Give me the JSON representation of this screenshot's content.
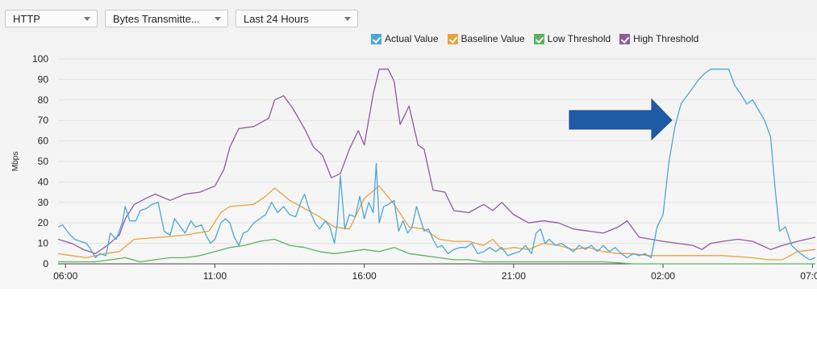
{
  "toolbar": {
    "protocol": "HTTP",
    "metric": "Bytes Transmitte...",
    "range": "Last 24 Hours"
  },
  "legend": [
    {
      "label": "Actual Value",
      "color": "#4aa7d6"
    },
    {
      "label": "Baseline Value",
      "color": "#e8a23c"
    },
    {
      "label": "Low Threshold",
      "color": "#5bb35f"
    },
    {
      "label": "High Threshold",
      "color": "#8e5aa0"
    }
  ],
  "annotation_icon": "arrow-right-icon",
  "chart_data": {
    "type": "line",
    "ylabel": "Mbps",
    "xlabel": "",
    "ylim": [
      0,
      100
    ],
    "yticks": [
      0,
      10,
      20,
      30,
      40,
      50,
      60,
      70,
      80,
      90,
      100
    ],
    "xlim": [
      5.75,
      31.1
    ],
    "xticks": [
      {
        "label": "06:00",
        "x": 6
      },
      {
        "label": "11:00",
        "x": 11
      },
      {
        "label": "16:00",
        "x": 16
      },
      {
        "label": "21:00",
        "x": 21
      },
      {
        "label": "02:00",
        "x": 26
      },
      {
        "label": "07:00",
        "x": 31
      }
    ],
    "grid": true,
    "legend_position": "top-right",
    "series": [
      {
        "name": "Actual Value",
        "color": "#4aa7d6",
        "points": [
          [
            5.75,
            18
          ],
          [
            5.9,
            19
          ],
          [
            6.1,
            15
          ],
          [
            6.3,
            12
          ],
          [
            6.5,
            11
          ],
          [
            6.7,
            10
          ],
          [
            6.85,
            7
          ],
          [
            7.0,
            3
          ],
          [
            7.15,
            5
          ],
          [
            7.35,
            4
          ],
          [
            7.5,
            15
          ],
          [
            7.7,
            12
          ],
          [
            7.9,
            20
          ],
          [
            8.0,
            28
          ],
          [
            8.15,
            21
          ],
          [
            8.35,
            21
          ],
          [
            8.5,
            26
          ],
          [
            8.7,
            27
          ],
          [
            8.9,
            29
          ],
          [
            9.1,
            30
          ],
          [
            9.3,
            16
          ],
          [
            9.5,
            14
          ],
          [
            9.65,
            22
          ],
          [
            9.85,
            18
          ],
          [
            10.0,
            15
          ],
          [
            10.2,
            21
          ],
          [
            10.35,
            18
          ],
          [
            10.55,
            19
          ],
          [
            10.7,
            14
          ],
          [
            10.85,
            10
          ],
          [
            11.0,
            12
          ],
          [
            11.2,
            20
          ],
          [
            11.35,
            22
          ],
          [
            11.5,
            20
          ],
          [
            11.65,
            13
          ],
          [
            11.8,
            9
          ],
          [
            11.95,
            15
          ],
          [
            12.1,
            16
          ],
          [
            12.3,
            20
          ],
          [
            12.5,
            22
          ],
          [
            12.7,
            24
          ],
          [
            12.9,
            30
          ],
          [
            13.1,
            25
          ],
          [
            13.3,
            28
          ],
          [
            13.5,
            24
          ],
          [
            13.7,
            23
          ],
          [
            13.9,
            31
          ],
          [
            14.0,
            34
          ],
          [
            14.15,
            27
          ],
          [
            14.35,
            20
          ],
          [
            14.5,
            17
          ],
          [
            14.7,
            21
          ],
          [
            14.85,
            18
          ],
          [
            15.0,
            10
          ],
          [
            15.1,
            20
          ],
          [
            15.2,
            43
          ],
          [
            15.35,
            17
          ],
          [
            15.5,
            24
          ],
          [
            15.7,
            23
          ],
          [
            15.85,
            33
          ],
          [
            16.0,
            22
          ],
          [
            16.15,
            30
          ],
          [
            16.3,
            25
          ],
          [
            16.4,
            49
          ],
          [
            16.5,
            20
          ],
          [
            16.65,
            28
          ],
          [
            16.8,
            29
          ],
          [
            17.0,
            31
          ],
          [
            17.15,
            16
          ],
          [
            17.3,
            21
          ],
          [
            17.45,
            15
          ],
          [
            17.6,
            18
          ],
          [
            17.75,
            28
          ],
          [
            18.0,
            16
          ],
          [
            18.15,
            17
          ],
          [
            18.3,
            12
          ],
          [
            18.45,
            8
          ],
          [
            18.6,
            9
          ],
          [
            18.8,
            5
          ],
          [
            19.0,
            7
          ],
          [
            19.2,
            8
          ],
          [
            19.4,
            8
          ],
          [
            19.6,
            10
          ],
          [
            19.8,
            5
          ],
          [
            20.0,
            6
          ],
          [
            20.2,
            8
          ],
          [
            20.4,
            6
          ],
          [
            20.6,
            8
          ],
          [
            20.8,
            4
          ],
          [
            21.0,
            5
          ],
          [
            21.2,
            6
          ],
          [
            21.4,
            9
          ],
          [
            21.6,
            5
          ],
          [
            21.75,
            15
          ],
          [
            21.9,
            17
          ],
          [
            22.05,
            10
          ],
          [
            22.2,
            12
          ],
          [
            22.4,
            9
          ],
          [
            22.6,
            10
          ],
          [
            22.8,
            8
          ],
          [
            23.0,
            6
          ],
          [
            23.2,
            9
          ],
          [
            23.4,
            7
          ],
          [
            23.6,
            9
          ],
          [
            23.8,
            6
          ],
          [
            24.0,
            9
          ],
          [
            24.2,
            6
          ],
          [
            24.4,
            8
          ],
          [
            24.6,
            5
          ],
          [
            24.8,
            3
          ],
          [
            25.0,
            5
          ],
          [
            25.2,
            4
          ],
          [
            25.4,
            5
          ],
          [
            25.6,
            3
          ],
          [
            25.8,
            18
          ],
          [
            26.0,
            24
          ],
          [
            26.2,
            50
          ],
          [
            26.4,
            67
          ],
          [
            26.6,
            78
          ],
          [
            26.8,
            82
          ],
          [
            27.0,
            86
          ],
          [
            27.2,
            90
          ],
          [
            27.4,
            93
          ],
          [
            27.6,
            95
          ],
          [
            27.8,
            95
          ],
          [
            28.0,
            95
          ],
          [
            28.2,
            95
          ],
          [
            28.4,
            87
          ],
          [
            28.6,
            83
          ],
          [
            28.8,
            78
          ],
          [
            29.0,
            80
          ],
          [
            29.2,
            75
          ],
          [
            29.4,
            70
          ],
          [
            29.6,
            62
          ],
          [
            29.75,
            37
          ],
          [
            29.9,
            16
          ],
          [
            30.1,
            18
          ],
          [
            30.3,
            9
          ],
          [
            30.6,
            5
          ],
          [
            30.9,
            2
          ],
          [
            31.1,
            3
          ]
        ]
      },
      {
        "name": "Baseline Value",
        "color": "#e8a23c",
        "points": [
          [
            5.75,
            5
          ],
          [
            6.2,
            4
          ],
          [
            6.7,
            3
          ],
          [
            7.3,
            5
          ],
          [
            7.8,
            6
          ],
          [
            8.3,
            12
          ],
          [
            9.2,
            13
          ],
          [
            10.0,
            14
          ],
          [
            10.8,
            16
          ],
          [
            11.2,
            25
          ],
          [
            11.5,
            28
          ],
          [
            12.3,
            29
          ],
          [
            12.7,
            33
          ],
          [
            13.0,
            37
          ],
          [
            13.5,
            31
          ],
          [
            14.0,
            27
          ],
          [
            14.5,
            23
          ],
          [
            15.0,
            18
          ],
          [
            15.5,
            17
          ],
          [
            16.0,
            32
          ],
          [
            16.5,
            38
          ],
          [
            17.0,
            29
          ],
          [
            17.5,
            18
          ],
          [
            18.0,
            17
          ],
          [
            18.5,
            12
          ],
          [
            19.0,
            11
          ],
          [
            19.5,
            11
          ],
          [
            20.0,
            9
          ],
          [
            20.3,
            12
          ],
          [
            20.6,
            7
          ],
          [
            21.0,
            8
          ],
          [
            21.5,
            7
          ],
          [
            22.0,
            10
          ],
          [
            22.5,
            9
          ],
          [
            23.0,
            7
          ],
          [
            23.5,
            8
          ],
          [
            24.0,
            6
          ],
          [
            24.5,
            5
          ],
          [
            25.0,
            5
          ],
          [
            25.5,
            4
          ],
          [
            26.0,
            4
          ],
          [
            27.0,
            4
          ],
          [
            28.0,
            4
          ],
          [
            29.0,
            3
          ],
          [
            29.5,
            2
          ],
          [
            30.0,
            2
          ],
          [
            30.5,
            6
          ],
          [
            31.1,
            7
          ]
        ]
      },
      {
        "name": "Low Threshold",
        "color": "#5bb35f",
        "points": [
          [
            5.75,
            1
          ],
          [
            6.5,
            1
          ],
          [
            7.0,
            1
          ],
          [
            7.5,
            2
          ],
          [
            8.0,
            3
          ],
          [
            8.5,
            1
          ],
          [
            9.0,
            2
          ],
          [
            9.5,
            3
          ],
          [
            10.0,
            3
          ],
          [
            10.5,
            4
          ],
          [
            11.0,
            6
          ],
          [
            11.5,
            8
          ],
          [
            12.0,
            9
          ],
          [
            12.5,
            11
          ],
          [
            13.0,
            12
          ],
          [
            13.5,
            9
          ],
          [
            14.0,
            8
          ],
          [
            14.5,
            6
          ],
          [
            15.0,
            5
          ],
          [
            15.5,
            6
          ],
          [
            16.0,
            7
          ],
          [
            16.5,
            6
          ],
          [
            17.0,
            8
          ],
          [
            17.5,
            5
          ],
          [
            18.0,
            4
          ],
          [
            18.5,
            3
          ],
          [
            19.0,
            2
          ],
          [
            19.5,
            2
          ],
          [
            20.0,
            1
          ],
          [
            20.5,
            1
          ],
          [
            21.0,
            1
          ],
          [
            22.0,
            1
          ],
          [
            23.0,
            1
          ],
          [
            24.0,
            1
          ],
          [
            25.0,
            0
          ],
          [
            26.0,
            0
          ],
          [
            27.0,
            0
          ],
          [
            28.0,
            0
          ],
          [
            29.0,
            0
          ],
          [
            30.0,
            0
          ],
          [
            31.1,
            0
          ]
        ]
      },
      {
        "name": "High Threshold",
        "color": "#8e5aa0",
        "points": [
          [
            5.75,
            12
          ],
          [
            6.2,
            10
          ],
          [
            6.6,
            7
          ],
          [
            7.0,
            5
          ],
          [
            7.4,
            9
          ],
          [
            7.8,
            14
          ],
          [
            8.0,
            22
          ],
          [
            8.3,
            29
          ],
          [
            8.7,
            32
          ],
          [
            9.0,
            34
          ],
          [
            9.5,
            31
          ],
          [
            10.0,
            34
          ],
          [
            10.5,
            35
          ],
          [
            11.0,
            38
          ],
          [
            11.3,
            46
          ],
          [
            11.5,
            57
          ],
          [
            11.8,
            66
          ],
          [
            12.3,
            67
          ],
          [
            12.8,
            71
          ],
          [
            13.0,
            80
          ],
          [
            13.3,
            82
          ],
          [
            13.6,
            76
          ],
          [
            14.0,
            66
          ],
          [
            14.3,
            57
          ],
          [
            14.6,
            53
          ],
          [
            14.9,
            42
          ],
          [
            15.2,
            44
          ],
          [
            15.5,
            56
          ],
          [
            15.8,
            65
          ],
          [
            16.0,
            58
          ],
          [
            16.3,
            83
          ],
          [
            16.5,
            95
          ],
          [
            16.8,
            95
          ],
          [
            17.0,
            89
          ],
          [
            17.2,
            68
          ],
          [
            17.5,
            77
          ],
          [
            17.8,
            58
          ],
          [
            18.0,
            56
          ],
          [
            18.3,
            36
          ],
          [
            18.7,
            35
          ],
          [
            19.0,
            26
          ],
          [
            19.5,
            25
          ],
          [
            20.0,
            29
          ],
          [
            20.3,
            26
          ],
          [
            20.6,
            30
          ],
          [
            21.0,
            24
          ],
          [
            21.5,
            20
          ],
          [
            22.0,
            21
          ],
          [
            22.5,
            20
          ],
          [
            23.0,
            17
          ],
          [
            23.5,
            16
          ],
          [
            24.0,
            15
          ],
          [
            24.5,
            18
          ],
          [
            24.8,
            21
          ],
          [
            25.2,
            13
          ],
          [
            25.6,
            12
          ],
          [
            26.0,
            11
          ],
          [
            26.5,
            10
          ],
          [
            27.0,
            9
          ],
          [
            27.3,
            7
          ],
          [
            27.6,
            10
          ],
          [
            28.0,
            11
          ],
          [
            28.5,
            12
          ],
          [
            29.0,
            11
          ],
          [
            29.3,
            9
          ],
          [
            29.6,
            7
          ],
          [
            30.0,
            9
          ],
          [
            30.5,
            11
          ],
          [
            31.1,
            13
          ]
        ]
      }
    ]
  }
}
